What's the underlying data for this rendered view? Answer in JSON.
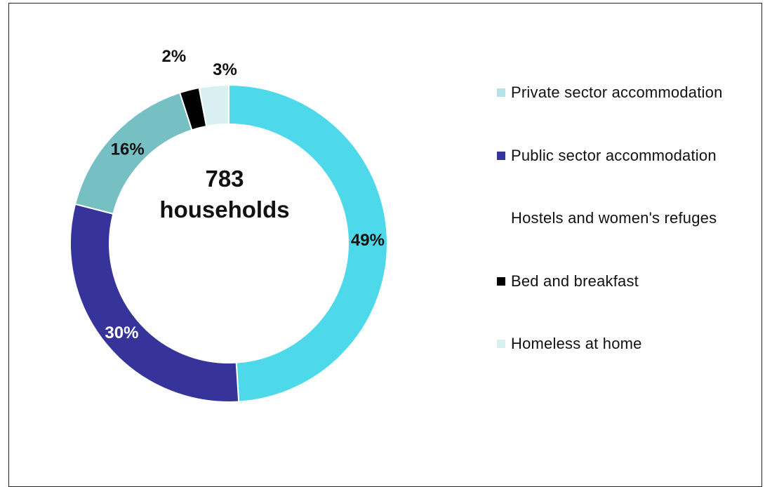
{
  "chart_data": {
    "type": "donut",
    "center_label": {
      "line1": "783",
      "line2": "households"
    },
    "categories": [
      "Private sector accommodation",
      "Public sector accommodation",
      "Hostels and women's refuges",
      "Bed and breakfast",
      "Homeless at home"
    ],
    "slices": [
      {
        "label": "Private sector accommodation",
        "value": 49,
        "display": "49%",
        "color": "#4dd9ea"
      },
      {
        "label": "Public sector accommodation",
        "value": 30,
        "display": "30%",
        "color": "#36349b"
      },
      {
        "label": "Hostels and women's refuges",
        "value": 16,
        "display": "16%",
        "color": "#76c0c4"
      },
      {
        "label": "Bed and breakfast",
        "value": 2,
        "display": "2%",
        "color": "#000000"
      },
      {
        "label": "Homeless at home",
        "value": 3,
        "display": "3%",
        "color": "#d9f0f2"
      }
    ],
    "legend": [
      {
        "label": "Private sector accommodation",
        "color": "#b5e3e8",
        "swatch": true
      },
      {
        "label": "Public sector accommodation",
        "color": "#36349b",
        "swatch": true
      },
      {
        "label": "Hostels and women's refuges",
        "color": "#ffffff",
        "swatch": false
      },
      {
        "label": "Bed and breakfast",
        "color": "#000000",
        "swatch": true
      },
      {
        "label": "Homeless at home",
        "color": "#d9f0f2",
        "swatch": true
      }
    ],
    "legend_position": "right"
  }
}
